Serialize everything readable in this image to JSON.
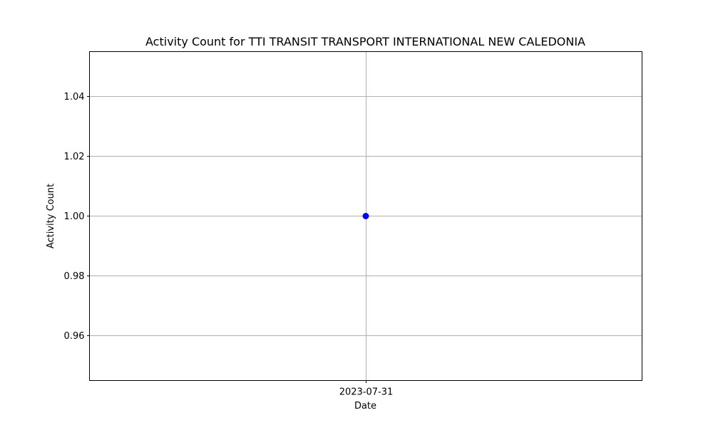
{
  "chart_data": {
    "type": "line",
    "title": "Activity Count for TTI TRANSIT TRANSPORT INTERNATIONAL NEW CALEDONIA",
    "xlabel": "Date",
    "ylabel": "Activity Count",
    "x": [
      "2023-07-31"
    ],
    "series": [
      {
        "values": [
          1
        ]
      }
    ],
    "xticks": [
      "2023-07-31"
    ],
    "yticks": [
      "0.96",
      "0.98",
      "1.00",
      "1.02",
      "1.04"
    ],
    "ylim": [
      0.945,
      1.055
    ],
    "grid": true,
    "legend": "none",
    "marker": "circle",
    "colors": {
      "series": "#0000ff",
      "grid": "#b0b0b0",
      "axes": "#000000"
    }
  }
}
